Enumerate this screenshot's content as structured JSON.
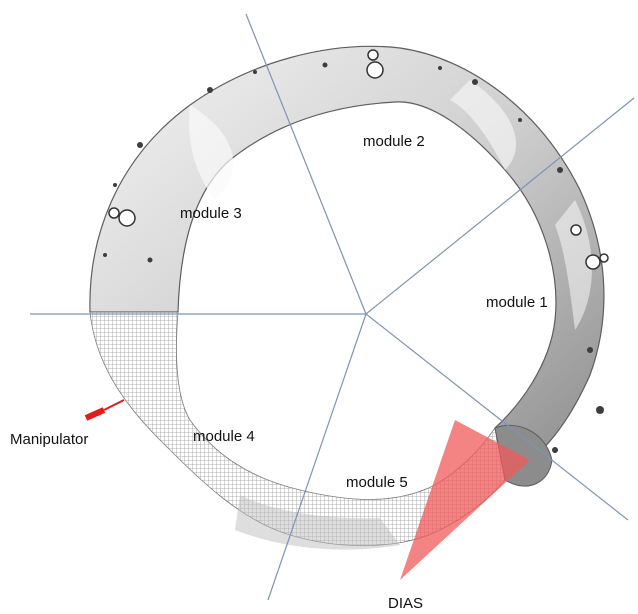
{
  "labels": {
    "module_1": "module 1",
    "module_2": "module 2",
    "module_3": "module 3",
    "module_4": "module 4",
    "module_5": "module 5",
    "manipulator": "Manipulator",
    "dias": "DIAS"
  },
  "colors": {
    "divider_line": "#7f93b8",
    "torus_dark": "#6b6b6b",
    "torus_light": "#f2f2f2",
    "mesh_gray": "#9a9a9a",
    "dias_cone": "#f05a5a",
    "manipulator_arrow": "#e31b1b",
    "text": "#111111"
  },
  "icons": {
    "manipulator": "red-arrow-icon",
    "dias": "red-cone-icon"
  }
}
